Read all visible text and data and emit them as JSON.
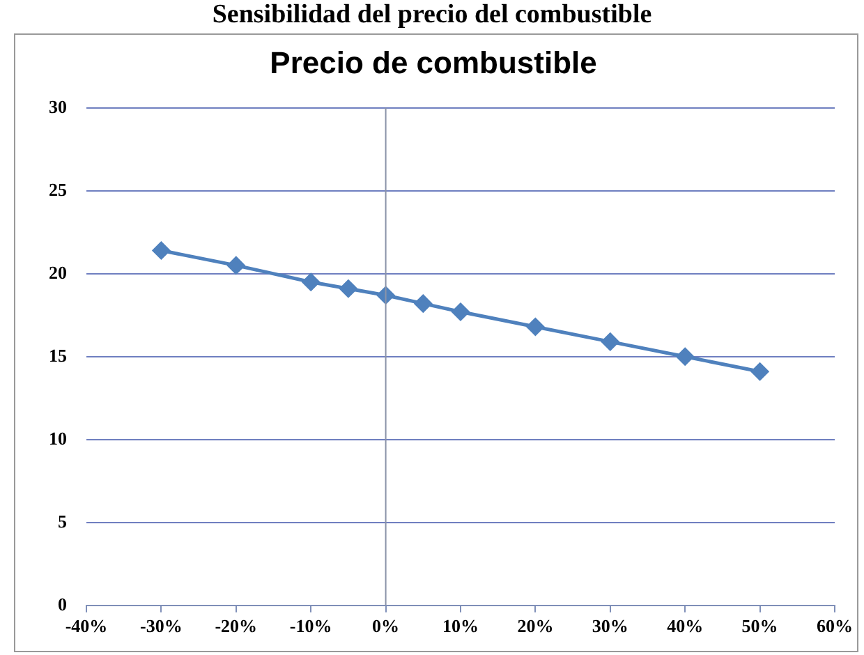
{
  "chart_data": {
    "type": "line",
    "title": "Precio de combustible",
    "annotations": [
      "Sensibilidad del precio del combustible"
    ],
    "x": [
      -30,
      -20,
      -10,
      -5,
      0,
      5,
      10,
      20,
      30,
      40,
      50
    ],
    "series": [
      {
        "color": "#4f81bd",
        "values": [
          21.4,
          20.5,
          19.5,
          19.1,
          18.7,
          18.2,
          17.7,
          16.8,
          15.9,
          15.0,
          14.1
        ]
      }
    ],
    "xlim": [
      -40,
      60
    ],
    "xticks": [
      {
        "value": -40,
        "label": "-40%"
      },
      {
        "value": -30,
        "label": "-30%"
      },
      {
        "value": -20,
        "label": "-20%"
      },
      {
        "value": -10,
        "label": "-10%"
      },
      {
        "value": 0,
        "label": "0%"
      },
      {
        "value": 10,
        "label": "10%"
      },
      {
        "value": 20,
        "label": "20%"
      },
      {
        "value": 30,
        "label": "30%"
      },
      {
        "value": 40,
        "label": "40%"
      },
      {
        "value": 50,
        "label": "50%"
      },
      {
        "value": 60,
        "label": "60%"
      }
    ],
    "ylim": [
      0,
      30
    ],
    "yticks": [
      0,
      5,
      10,
      15,
      20,
      25,
      30
    ],
    "ref_lines": [
      {
        "axis": "x",
        "value": 0,
        "color": "#8a93a8"
      }
    ],
    "grid": "y",
    "legend": false,
    "marker": "diamond",
    "line_style": "solid"
  }
}
